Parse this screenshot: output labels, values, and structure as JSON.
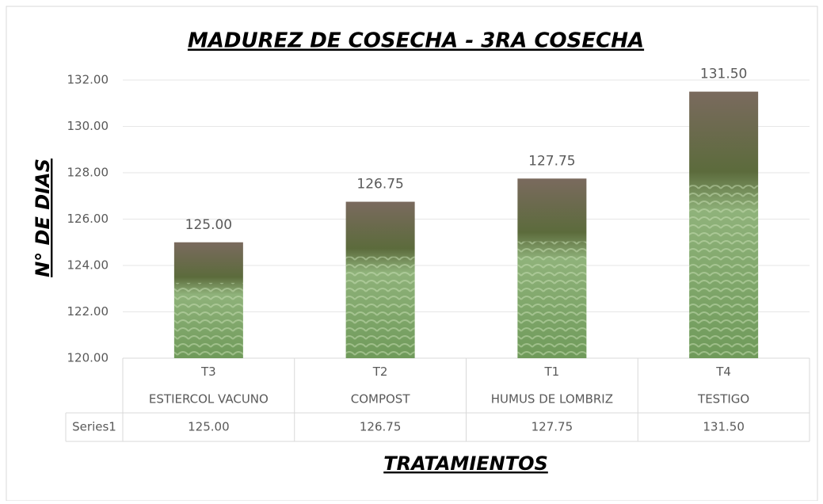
{
  "chart_data": {
    "type": "bar",
    "title": "MADUREZ DE COSECHA - 3RA COSECHA",
    "y_label": "N° DE DIAS",
    "x_label": "TRATAMIENTOS",
    "categories": [
      "T3",
      "T2",
      "T1",
      "T4"
    ],
    "category_labels": [
      "ESTIERCOL VACUNO",
      "COMPOST",
      "HUMUS DE LOMBRIZ",
      "TESTIGO"
    ],
    "series": [
      {
        "name": "Series1",
        "values": [
          125,
          126.75,
          127.75,
          131.5
        ],
        "value_labels": [
          "125.00",
          "126.75",
          "127.75",
          "131.50"
        ]
      }
    ],
    "ylim": [
      120,
      132
    ],
    "yticks": [
      {
        "value": 120,
        "label": "120.00"
      },
      {
        "value": 122,
        "label": "122.00"
      },
      {
        "value": 124,
        "label": "124.00"
      },
      {
        "value": 126,
        "label": "126.00"
      },
      {
        "value": 128,
        "label": "128.00"
      },
      {
        "value": 130,
        "label": "130.00"
      },
      {
        "value": 132,
        "label": "132.00"
      }
    ],
    "grid": true,
    "data_table": true
  }
}
